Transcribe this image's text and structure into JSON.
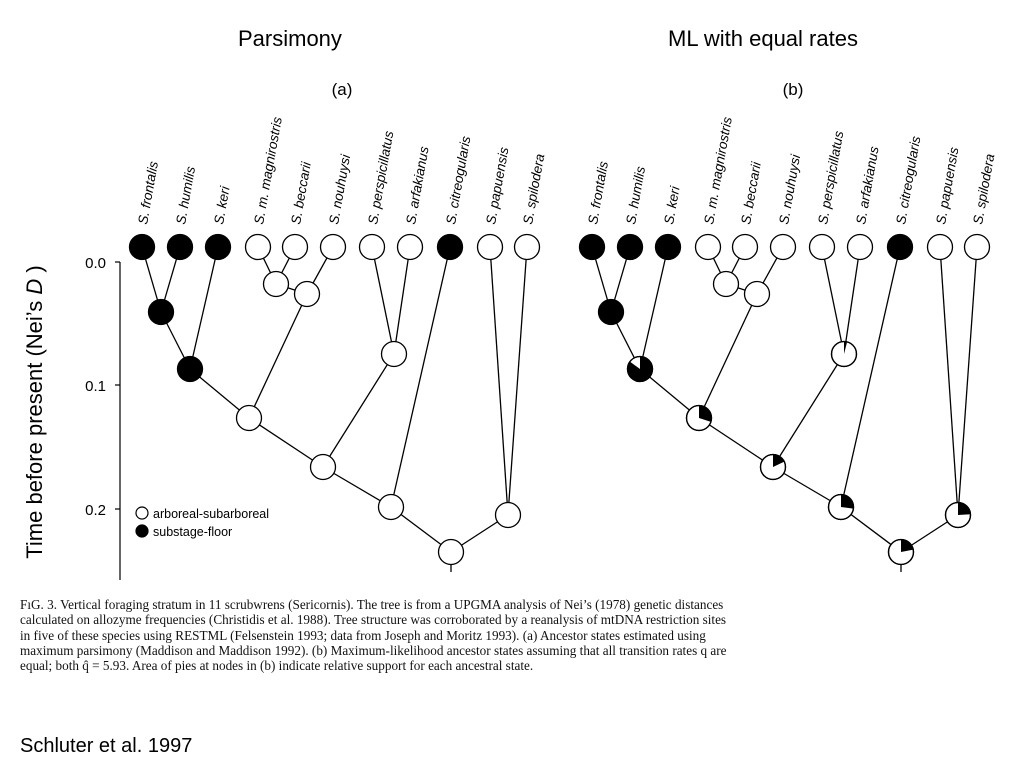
{
  "slide": {
    "title_left": "Parsimony",
    "title_right": "ML with equal rates",
    "citation": "Schluter et al. 1997"
  },
  "figure": {
    "panel_a_label": "(a)",
    "panel_b_label": "(b)",
    "y_axis_label_prefix": "Time before present (Nei’s ",
    "y_axis_label_italic": "D",
    "y_axis_label_suffix": " )",
    "y_ticks": [
      "0.0",
      "0.1",
      "0.2"
    ],
    "species": [
      "S. frontalis",
      "S. humilis",
      "S. keri",
      "S. m. magnirostris",
      "S. beccarii",
      "S. nouhuysi",
      "S. perspicillatus",
      "S. arfakianus",
      "S. citreogularis",
      "S. papuensis",
      "S. spilodera"
    ],
    "tip_states": [
      "substage-floor",
      "substage-floor",
      "substage-floor",
      "arboreal-subarboreal",
      "arboreal-subarboreal",
      "arboreal-subarboreal",
      "arboreal-subarboreal",
      "arboreal-subarboreal",
      "substage-floor",
      "arboreal-subarboreal",
      "arboreal-subarboreal"
    ],
    "legend": [
      {
        "label": "arboreal-subarboreal",
        "color": "#ffffff"
      },
      {
        "label": "substage-floor",
        "color": "#000000"
      }
    ],
    "colors": {
      "open": "#ffffff",
      "filled": "#000000",
      "line": "#000000"
    }
  },
  "caption": {
    "lines": [
      "FıG. 3.   Vertical foraging stratum in 11 scrubwrens (Sericornis). The tree is from a UPGMA analysis of Nei’s (1978) genetic distances",
      "calculated on allozyme frequencies (Christidis et al. 1988). Tree structure was corroborated by a reanalysis of mtDNA restriction sites",
      "in five of these species using RESTML (Felsenstein 1993; data from Joseph and Moritz 1993). (a) Ancestor states estimated using",
      "maximum parsimony (Maddison and Maddison 1992). (b) Maximum-likelihood ancestor states assuming that all transition rates q are",
      "equal; both q̂ = 5.93. Area of pies at nodes in (b) indicate relative support for each ancestral state."
    ]
  }
}
